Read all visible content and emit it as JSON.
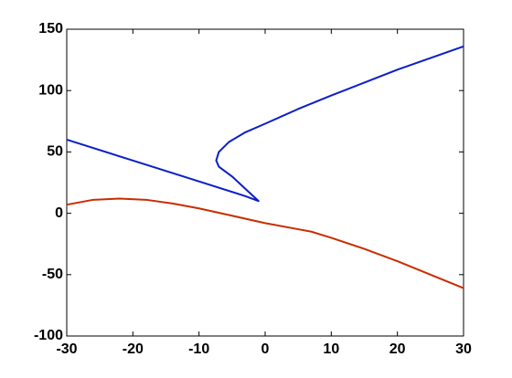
{
  "chart_data": {
    "type": "line",
    "series": [
      {
        "color": "#0a1ec8",
        "x": [
          -30,
          -20,
          -10,
          -3,
          -1,
          -3,
          -5,
          -7,
          -7.4,
          -7,
          -5.5,
          -3,
          0,
          5,
          10,
          20,
          30
        ],
        "values": [
          60,
          43,
          26,
          14,
          10,
          20,
          30,
          38,
          43,
          50,
          58,
          66,
          73,
          85,
          96,
          117,
          136
        ]
      },
      {
        "color": "#c82d00",
        "x": [
          -30,
          -26,
          -22,
          -18,
          -14,
          -10,
          -5,
          0,
          5,
          7,
          10,
          15,
          20,
          25,
          30
        ],
        "values": [
          7,
          11,
          12,
          11,
          8,
          4,
          -2,
          -8,
          -13,
          -15,
          -20,
          -29,
          -39,
          -50,
          -61
        ]
      }
    ],
    "xlim": [
      -30,
      30
    ],
    "xticks": [
      -30,
      -20,
      -10,
      0,
      10,
      20,
      30
    ],
    "ylim": [
      -100,
      150
    ],
    "yticks": [
      -100,
      -50,
      0,
      50,
      100,
      150
    ]
  }
}
